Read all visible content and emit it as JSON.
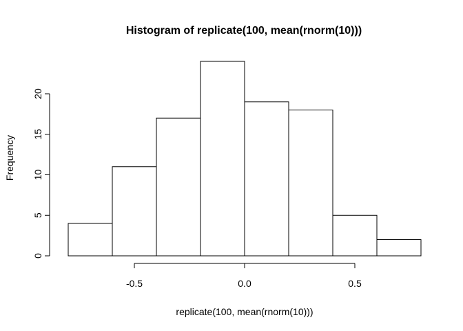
{
  "chart_data": {
    "type": "bar",
    "title": "Histogram of replicate(100, mean(rnorm(10)))",
    "xlabel": "replicate(100, mean(rnorm(10)))",
    "ylabel": "Frequency",
    "bins": [
      {
        "start": -0.8,
        "end": -0.6,
        "count": 4
      },
      {
        "start": -0.6,
        "end": -0.4,
        "count": 11
      },
      {
        "start": -0.4,
        "end": -0.2,
        "count": 17
      },
      {
        "start": -0.2,
        "end": 0.0,
        "count": 24
      },
      {
        "start": 0.0,
        "end": 0.2,
        "count": 19
      },
      {
        "start": 0.2,
        "end": 0.4,
        "count": 18
      },
      {
        "start": 0.4,
        "end": 0.6,
        "count": 5
      },
      {
        "start": 0.6,
        "end": 0.8,
        "count": 2
      }
    ],
    "xticks": [
      -0.5,
      0.0,
      0.5
    ],
    "xtick_labels": [
      "-0.5",
      "0.0",
      "0.5"
    ],
    "yticks": [
      0,
      5,
      10,
      15,
      20
    ],
    "ytick_labels": [
      "0",
      "5",
      "10",
      "15",
      "20"
    ],
    "xlim": [
      -0.8,
      0.8
    ],
    "ylim": [
      0,
      24
    ],
    "grid": false,
    "colors": {
      "bar_fill": "#ffffff",
      "bar_stroke": "#000000"
    }
  }
}
